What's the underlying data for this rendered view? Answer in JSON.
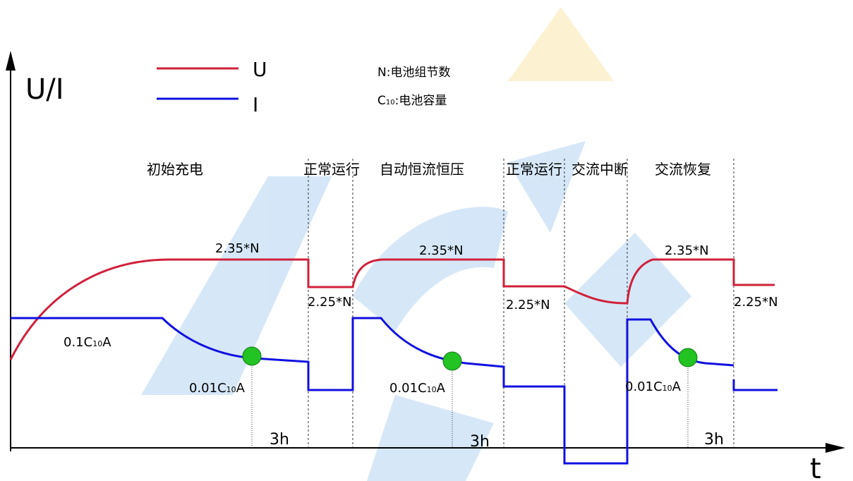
{
  "axes": {
    "y_label": "U/I",
    "x_label": "t"
  },
  "legend": [
    {
      "label": "U",
      "color": "#d0203a"
    },
    {
      "label": "I",
      "color": "#1010e0"
    }
  ],
  "notes": [
    {
      "pre": "N",
      "sub": "",
      "post": ":电池组节数"
    },
    {
      "pre": "C",
      "sub": "10",
      "post": ":电池容量"
    }
  ],
  "phases": [
    "初始充电",
    "正常运行",
    "自动恒流恒压",
    "正常运行",
    "交流中断",
    "交流恢复"
  ],
  "voltage_labels": [
    "2.35*N",
    "2.25*N",
    "2.35*N",
    "2.25*N",
    "2.35*N",
    "2.25*N"
  ],
  "current_labels": [
    {
      "pre": "0.1C",
      "sub": "10",
      "post": "A"
    },
    {
      "pre": "0.01C",
      "sub": "10",
      "post": "A"
    },
    {
      "pre": "0.01C",
      "sub": "10",
      "post": "A"
    },
    {
      "pre": "0.01C",
      "sub": "10",
      "post": "A"
    }
  ],
  "durations": [
    "3h",
    "3h",
    "3h"
  ]
}
